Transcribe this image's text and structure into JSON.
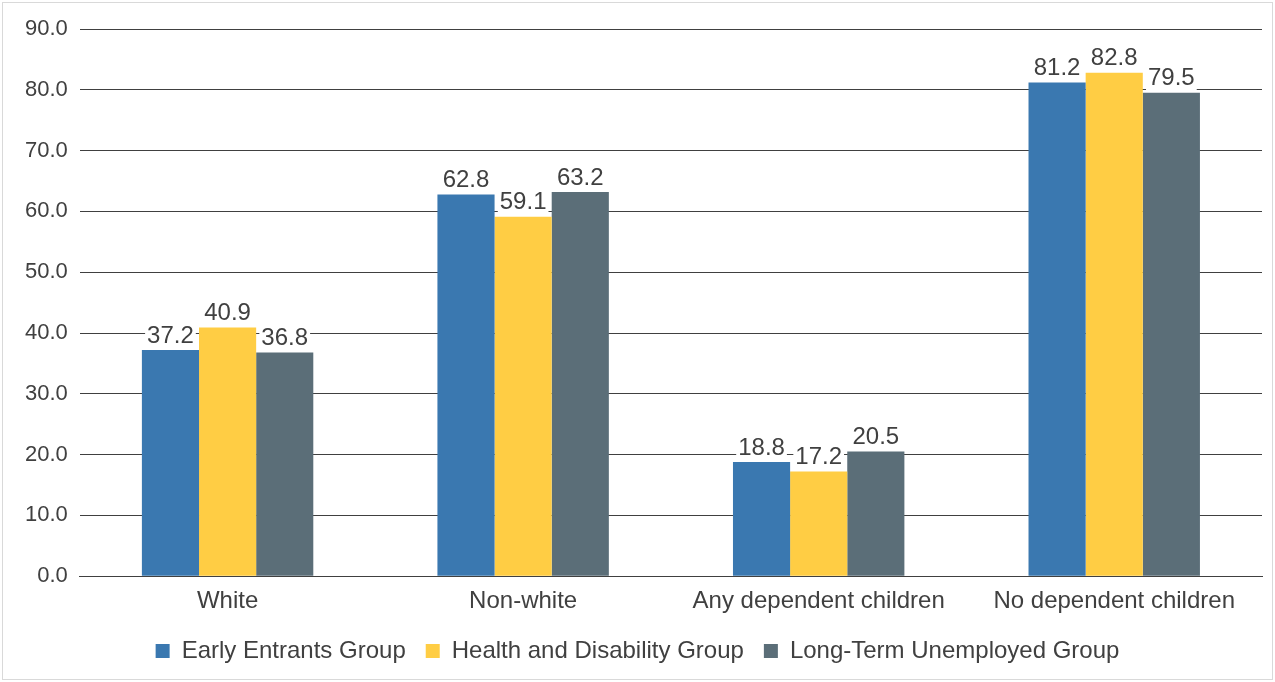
{
  "chart_data": {
    "type": "bar",
    "categories": [
      "White",
      "Non-white",
      "Any dependent children",
      "No dependent children"
    ],
    "series": [
      {
        "name": "Early Entrants Group",
        "color": "#3a78b0",
        "values": [
          37.2,
          62.8,
          18.8,
          81.2
        ]
      },
      {
        "name": "Health and Disability Group",
        "color": "#ffcd44",
        "values": [
          40.9,
          59.1,
          17.2,
          82.8
        ]
      },
      {
        "name": "Long-Term Unemployed Group",
        "color": "#5b6e78",
        "values": [
          36.8,
          63.2,
          20.5,
          79.5
        ]
      }
    ],
    "ylim": [
      0,
      90
    ],
    "yticks": [
      {
        "value": 0,
        "label": "0.0"
      },
      {
        "value": 10,
        "label": "10.0"
      },
      {
        "value": 20,
        "label": "20.0"
      },
      {
        "value": 30,
        "label": "30.0"
      },
      {
        "value": 40,
        "label": "40.0"
      },
      {
        "value": 50,
        "label": "50.0"
      },
      {
        "value": 60,
        "label": "60.0"
      },
      {
        "value": 70,
        "label": "70.0"
      },
      {
        "value": 80,
        "label": "80.0"
      },
      {
        "value": 90,
        "label": "90.0"
      }
    ],
    "grid": "y",
    "legend": "bottom",
    "data_labels": true
  }
}
